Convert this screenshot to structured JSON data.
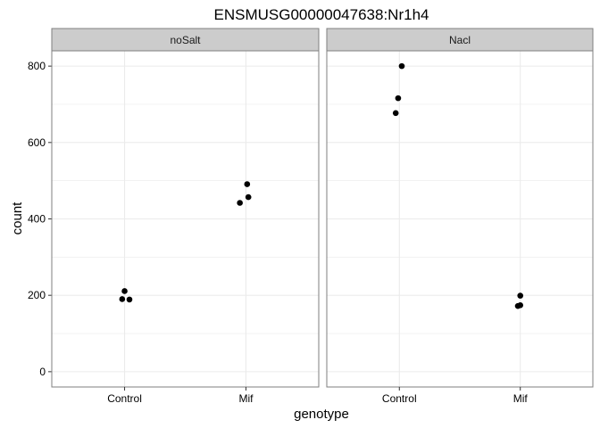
{
  "chart_data": {
    "type": "scatter",
    "title": "ENSMUSG00000047638:Nr1h4",
    "xlabel": "genotype",
    "ylabel": "count",
    "categories": [
      "Control",
      "Mif"
    ],
    "ylim": [
      -40,
      840
    ],
    "yticks": [
      0,
      200,
      400,
      600,
      800
    ],
    "grid": true,
    "legend": "none",
    "point_color": "#000000",
    "strip_fill": "#cccccc",
    "panel_border": "#7f7f7f",
    "grid_color": "#ebebeb",
    "panels": [
      {
        "label": "noSalt",
        "points": [
          {
            "x": "Control",
            "jitter": -0.02,
            "y": 190
          },
          {
            "x": "Control",
            "jitter": 0.0,
            "y": 211
          },
          {
            "x": "Control",
            "jitter": 0.04,
            "y": 189
          },
          {
            "x": "Mif",
            "jitter": -0.05,
            "y": 442
          },
          {
            "x": "Mif",
            "jitter": 0.01,
            "y": 491
          },
          {
            "x": "Mif",
            "jitter": 0.02,
            "y": 457
          }
        ]
      },
      {
        "label": "Nacl",
        "points": [
          {
            "x": "Control",
            "jitter": -0.03,
            "y": 677
          },
          {
            "x": "Control",
            "jitter": -0.01,
            "y": 716
          },
          {
            "x": "Control",
            "jitter": 0.02,
            "y": 800
          },
          {
            "x": "Mif",
            "jitter": -0.02,
            "y": 172
          },
          {
            "x": "Mif",
            "jitter": 0.0,
            "y": 199
          },
          {
            "x": "Mif",
            "jitter": 0.0,
            "y": 174
          }
        ]
      }
    ]
  }
}
